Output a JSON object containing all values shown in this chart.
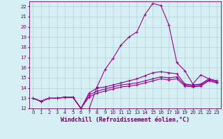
{
  "x": [
    0,
    1,
    2,
    3,
    4,
    5,
    6,
    7,
    8,
    9,
    10,
    11,
    12,
    13,
    14,
    15,
    16,
    17,
    18,
    19,
    20,
    21,
    22,
    23
  ],
  "series": [
    [
      13.0,
      12.7,
      13.0,
      13.0,
      13.1,
      13.1,
      12.0,
      11.9,
      14.1,
      15.8,
      16.9,
      18.2,
      19.0,
      19.5,
      21.2,
      22.3,
      22.1,
      20.2,
      16.5,
      15.7,
      14.4,
      15.3,
      14.9,
      14.7
    ],
    [
      13.0,
      12.7,
      13.0,
      13.0,
      13.1,
      13.1,
      12.0,
      13.5,
      14.0,
      14.1,
      14.3,
      14.5,
      14.7,
      14.9,
      15.2,
      15.5,
      15.6,
      15.5,
      15.4,
      14.4,
      14.3,
      14.4,
      14.9,
      14.7
    ],
    [
      13.0,
      12.7,
      13.0,
      13.0,
      13.1,
      13.1,
      12.0,
      13.3,
      13.7,
      13.9,
      14.1,
      14.3,
      14.4,
      14.5,
      14.7,
      14.9,
      15.1,
      15.0,
      15.1,
      14.3,
      14.2,
      14.3,
      14.8,
      14.6
    ],
    [
      13.0,
      12.7,
      13.0,
      13.0,
      13.1,
      13.1,
      12.0,
      13.1,
      13.5,
      13.7,
      13.9,
      14.1,
      14.2,
      14.3,
      14.5,
      14.7,
      14.9,
      14.8,
      14.9,
      14.2,
      14.1,
      14.2,
      14.7,
      14.5
    ]
  ],
  "line_color": "#990099",
  "marker": "+",
  "markersize": 3,
  "linewidth": 0.8,
  "ylim": [
    12,
    22.5
  ],
  "xlim": [
    -0.5,
    23.5
  ],
  "yticks": [
    12,
    13,
    14,
    15,
    16,
    17,
    18,
    19,
    20,
    21,
    22
  ],
  "xticks": [
    0,
    1,
    2,
    3,
    4,
    5,
    6,
    7,
    8,
    9,
    10,
    11,
    12,
    13,
    14,
    15,
    16,
    17,
    18,
    19,
    20,
    21,
    22,
    23
  ],
  "xlabel": "Windchill (Refroidissement éolien,°C)",
  "background_color": "#d5eff5",
  "grid_color": "#aacccc",
  "text_color": "#660066",
  "axis_color": "#660066",
  "tick_color": "#660066",
  "xlabel_fontsize": 6.0,
  "tick_fontsize": 5.0,
  "figsize": [
    3.2,
    2.0
  ],
  "dpi": 100
}
